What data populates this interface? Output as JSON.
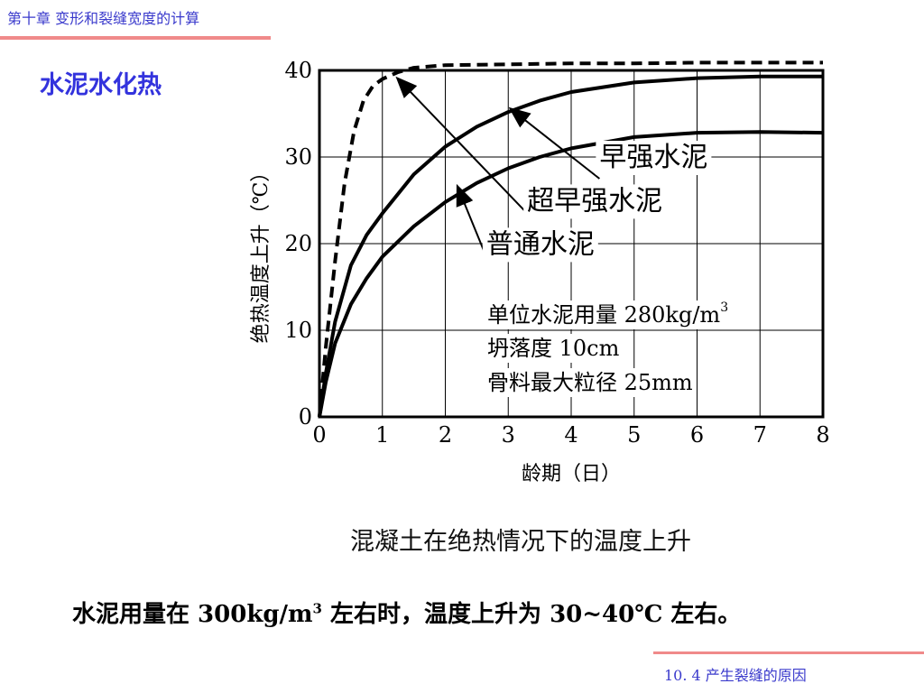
{
  "header": {
    "title": "第十章  变形和裂缝宽度的计算"
  },
  "section_title": "水泥水化热",
  "caption": "混凝土在绝热情况下的温度上升",
  "summary": {
    "prefix": "水泥用量在 300kg/m",
    "superscript": "3",
    "suffix": " 左右时，温度上升为 30~40℃ 左右。"
  },
  "footer": {
    "text": "10. 4   产生裂缝的原因"
  },
  "colors": {
    "accent_line": "#f08a8a",
    "header_text": "#3a3acc",
    "section_title": "#3333dd"
  },
  "chart_data": {
    "type": "line",
    "xlabel": "龄期（日）",
    "ylabel": "绝热温度上升（℃）",
    "xlim": [
      0,
      8
    ],
    "ylim": [
      0,
      40
    ],
    "x_ticks": [
      0,
      1,
      2,
      3,
      4,
      5,
      6,
      7,
      8
    ],
    "y_ticks": [
      0,
      10,
      20,
      30,
      40
    ],
    "grid": true,
    "series": [
      {
        "name": "超早强水泥",
        "style": "dashed",
        "x": [
          0,
          0.1,
          0.25,
          0.4,
          0.55,
          0.7,
          0.85,
          1,
          1.25,
          1.5,
          2,
          3,
          4,
          5,
          6,
          7,
          8
        ],
        "y": [
          0,
          8,
          18,
          27,
          33,
          36.5,
          38.2,
          39,
          39.8,
          40.3,
          40.6,
          40.7,
          40.8,
          40.8,
          40.9,
          40.9,
          40.9
        ]
      },
      {
        "name": "早强水泥",
        "style": "solid",
        "x": [
          0,
          0.1,
          0.25,
          0.5,
          0.75,
          1,
          1.5,
          2,
          2.5,
          3,
          3.5,
          4,
          5,
          6,
          7,
          8
        ],
        "y": [
          0,
          5,
          11,
          17.5,
          21,
          23.5,
          28,
          31.2,
          33.5,
          35.2,
          36.5,
          37.5,
          38.6,
          39.1,
          39.3,
          39.3
        ]
      },
      {
        "name": "普通水泥",
        "style": "solid",
        "x": [
          0,
          0.1,
          0.25,
          0.5,
          0.75,
          1,
          1.5,
          2,
          2.5,
          3,
          3.5,
          4,
          5,
          6,
          7,
          8
        ],
        "y": [
          0,
          4,
          8.5,
          13,
          16,
          18.5,
          22,
          24.8,
          27,
          28.7,
          30,
          31,
          32.3,
          32.8,
          32.9,
          32.8
        ]
      }
    ],
    "annotations": [
      {
        "text": "早强水泥",
        "series": "早强水泥",
        "label_anchor": [
          4.45,
          27.5
        ],
        "target": [
          3.05,
          35.5
        ],
        "connector_style": "arrow"
      },
      {
        "text": "超早强水泥",
        "series": "超早强水泥",
        "label_anchor": [
          3.3,
          23.5
        ],
        "target": [
          1.25,
          39.0
        ],
        "connector_style": "arrow"
      },
      {
        "text": "普通水泥",
        "series": "普通水泥",
        "label_anchor": [
          2.65,
          18.5
        ],
        "target": [
          2.2,
          26.5
        ],
        "connector_style": "arrow"
      }
    ],
    "notes": [
      {
        "main": "单位水泥用量 280kg/m",
        "sup": "3"
      },
      {
        "main": "坍落度 10cm",
        "sup": ""
      },
      {
        "main": "骨料最大粒径 25mm",
        "sup": ""
      }
    ]
  }
}
